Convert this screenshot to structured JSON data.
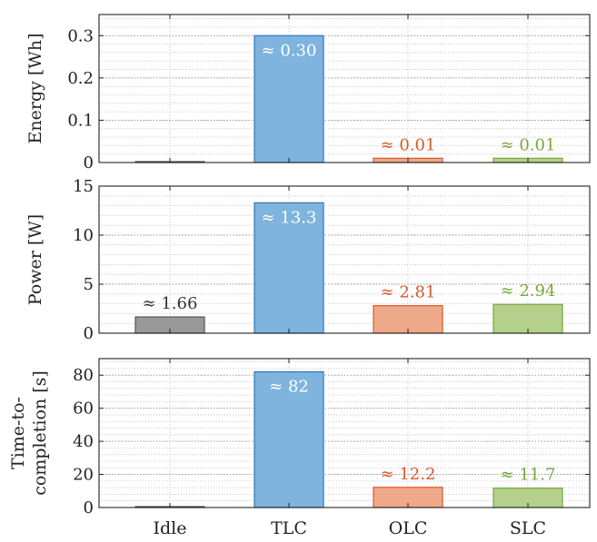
{
  "chart_data": [
    {
      "type": "bar",
      "ylabel": "Energy [Wh]",
      "categories": [
        "Idle",
        "TLC",
        "OLC",
        "SLC"
      ],
      "values": [
        0.0,
        0.3,
        0.01,
        0.01
      ],
      "labels": [
        "",
        "≈ 0.30",
        "≈ 0.01",
        "≈ 0.01"
      ],
      "ylim": [
        0,
        0.35
      ],
      "yticks": [
        "0",
        "0.1",
        "0.2",
        "0.3"
      ],
      "ytick_values": [
        0,
        0.1,
        0.2,
        0.3
      ],
      "grid": true
    },
    {
      "type": "bar",
      "ylabel": "Power [W]",
      "categories": [
        "Idle",
        "TLC",
        "OLC",
        "SLC"
      ],
      "values": [
        1.66,
        13.3,
        2.81,
        2.94
      ],
      "labels": [
        "≈ 1.66",
        "≈ 13.3",
        "≈ 2.81",
        "≈ 2.94"
      ],
      "ylim": [
        0,
        15
      ],
      "yticks": [
        "0",
        "5",
        "10",
        "15"
      ],
      "ytick_values": [
        0,
        5,
        10,
        15
      ],
      "grid": true
    },
    {
      "type": "bar",
      "ylabel": [
        "Time-to-",
        "completion [s]"
      ],
      "categories": [
        "Idle",
        "TLC",
        "OLC",
        "SLC"
      ],
      "values": [
        0,
        82,
        12.2,
        11.7
      ],
      "labels": [
        "",
        "≈ 82",
        "≈ 12.2",
        "≈ 11.7"
      ],
      "ylim": [
        0,
        90
      ],
      "yticks": [
        "0",
        "20",
        "40",
        "60",
        "80"
      ],
      "ytick_values": [
        0,
        20,
        40,
        60,
        80
      ],
      "grid": true
    }
  ],
  "x_categories": [
    "Idle",
    "TLC",
    "OLC",
    "SLC"
  ],
  "colors": {
    "Idle": {
      "fill": "#999999",
      "stroke": "#555555",
      "label": "#333333"
    },
    "TLC": {
      "fill": "#7eb4dd",
      "stroke": "#2a78bd",
      "label": "#ffffff"
    },
    "OLC": {
      "fill": "#eea98a",
      "stroke": "#d9582b",
      "label": "#d9582b"
    },
    "SLC": {
      "fill": "#b5d08a",
      "stroke": "#76a83e",
      "label": "#76a83e"
    }
  }
}
